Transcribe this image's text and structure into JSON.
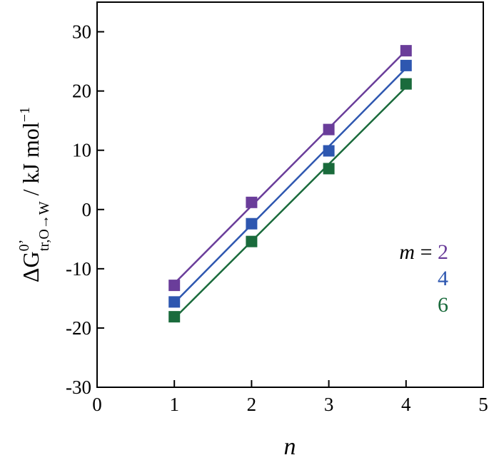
{
  "chart_data": {
    "type": "scatter",
    "xlabel": "n",
    "ylabel": {
      "main": "ΔG",
      "superscript": "0’",
      "subscript_prefix": "tr,O",
      "arrow": "→",
      "subscript_suffix": "W",
      "unit": " / kJ mol",
      "unit_superscript": "−1"
    },
    "xlim": [
      0,
      5
    ],
    "ylim": [
      -30,
      35
    ],
    "x_ticks": [
      0,
      1,
      2,
      3,
      4,
      5
    ],
    "y_ticks": [
      -30,
      -20,
      -10,
      0,
      10,
      20,
      30
    ],
    "x_tick_labels": [
      "0",
      "1",
      "2",
      "3",
      "4",
      "5"
    ],
    "y_tick_labels": [
      "-30",
      "-20",
      "-10",
      "0",
      "10",
      "20",
      "30"
    ],
    "grid": false,
    "legend_placement": "right",
    "legend": {
      "prefix_var": "m",
      "prefix_eq": " = "
    },
    "series": [
      {
        "name": "2",
        "color": "#6a3d9a",
        "x": [
          1,
          2,
          3,
          4
        ],
        "y": [
          -12.8,
          1.2,
          13.5,
          26.8
        ]
      },
      {
        "name": "4",
        "color": "#2e57b0",
        "x": [
          1,
          2,
          3,
          4
        ],
        "y": [
          -15.6,
          -2.4,
          9.9,
          24.3
        ]
      },
      {
        "name": "6",
        "color": "#1a6b3c",
        "x": [
          1,
          2,
          3,
          4
        ],
        "y": [
          -18.1,
          -5.4,
          6.9,
          21.2
        ]
      }
    ]
  }
}
